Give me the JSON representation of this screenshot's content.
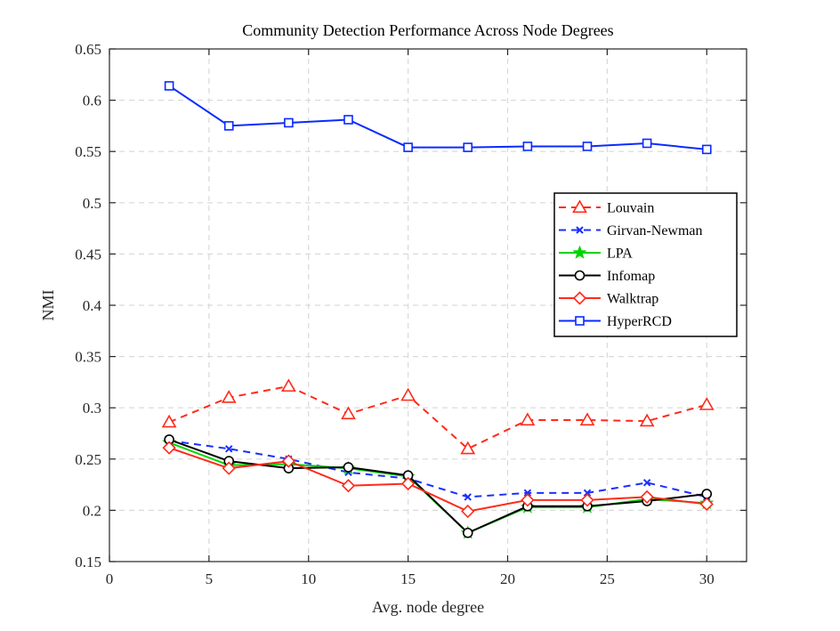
{
  "chart_data": {
    "type": "line",
    "title": "Community Detection Performance Across Node Degrees",
    "xlabel": "Avg. node degree",
    "ylabel": "NMI",
    "xlim": [
      0,
      32
    ],
    "ylim": [
      0.15,
      0.65
    ],
    "xticks": [
      0,
      5,
      10,
      15,
      20,
      25,
      30
    ],
    "xtick_labels": [
      "0",
      "5",
      "10",
      "15",
      "20",
      "25",
      "30"
    ],
    "yticks": [
      0.15,
      0.2,
      0.25,
      0.3,
      0.35,
      0.4,
      0.45,
      0.5,
      0.55,
      0.6,
      0.65
    ],
    "ytick_labels": [
      "0.15",
      "0.2",
      "0.25",
      "0.3",
      "0.35",
      "0.4",
      "0.45",
      "0.5",
      "0.55",
      "0.6",
      "0.65"
    ],
    "grid": true,
    "legend_position": "right",
    "x": [
      3,
      6,
      9,
      12,
      15,
      18,
      21,
      24,
      27,
      30
    ],
    "series": [
      {
        "name": "Louvain",
        "color": "#ff2a1a",
        "line": "dashed",
        "marker": "triangle",
        "values": [
          0.286,
          0.31,
          0.321,
          0.294,
          0.312,
          0.26,
          0.288,
          0.288,
          0.287,
          0.303
        ]
      },
      {
        "name": "Girvan-Newman",
        "color": "#1a2fff",
        "line": "dashed",
        "marker": "x",
        "values": [
          0.268,
          0.26,
          0.25,
          0.237,
          0.231,
          0.213,
          0.217,
          0.217,
          0.227,
          0.213
        ]
      },
      {
        "name": "LPA",
        "color": "#00d400",
        "line": "solid",
        "marker": "star",
        "values": [
          0.266,
          0.244,
          0.245,
          0.241,
          0.233,
          0.178,
          0.203,
          0.203,
          0.211,
          0.207
        ]
      },
      {
        "name": "Infomap",
        "color": "#000000",
        "line": "solid",
        "marker": "circle",
        "values": [
          0.269,
          0.248,
          0.241,
          0.242,
          0.234,
          0.178,
          0.204,
          0.204,
          0.209,
          0.216
        ]
      },
      {
        "name": "Walktrap",
        "color": "#ff2a1a",
        "line": "solid",
        "marker": "diamond",
        "values": [
          0.261,
          0.241,
          0.248,
          0.224,
          0.226,
          0.199,
          0.21,
          0.21,
          0.213,
          0.206
        ]
      },
      {
        "name": "HyperRCD",
        "color": "#0a2aff",
        "line": "solid",
        "marker": "square",
        "values": [
          0.614,
          0.575,
          0.578,
          0.581,
          0.554,
          0.554,
          0.555,
          0.555,
          0.558,
          0.552
        ]
      }
    ]
  }
}
